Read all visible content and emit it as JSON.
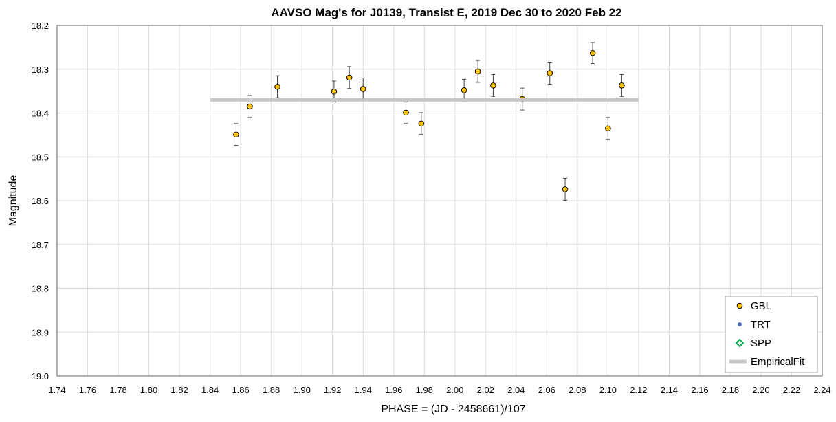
{
  "chart_data": {
    "type": "scatter",
    "title": "AAVSO Mag's for J0139, Transist E, 2019 Dec 30 to 2020 Feb 22",
    "xlabel": "PHASE = (JD - 2458661)/107",
    "ylabel": "Magnitude",
    "xlim": [
      1.74,
      2.24
    ],
    "ylim": [
      18.2,
      19.0
    ],
    "y_reversed": true,
    "grid": true,
    "legend_position": "bottom-right",
    "x_ticks": [
      "1.74",
      "1.76",
      "1.78",
      "1.80",
      "1.82",
      "1.84",
      "1.86",
      "1.88",
      "1.90",
      "1.92",
      "1.94",
      "1.96",
      "1.98",
      "2.00",
      "2.02",
      "2.04",
      "2.06",
      "2.08",
      "2.10",
      "2.12",
      "2.14",
      "2.16",
      "2.18",
      "2.20",
      "2.22",
      "2.24"
    ],
    "y_ticks": [
      "18.2",
      "18.3",
      "18.4",
      "18.5",
      "18.6",
      "18.7",
      "18.8",
      "18.9",
      "19.0"
    ],
    "series": [
      {
        "name": "GBL",
        "marker": "circle",
        "color": "#FFC000",
        "points": [
          {
            "x": 1.857,
            "y": 18.449,
            "err": 0.025
          },
          {
            "x": 1.866,
            "y": 18.385,
            "err": 0.025
          },
          {
            "x": 1.884,
            "y": 18.34,
            "err": 0.025
          },
          {
            "x": 1.921,
            "y": 18.351,
            "err": 0.024
          },
          {
            "x": 1.931,
            "y": 18.319,
            "err": 0.025
          },
          {
            "x": 1.94,
            "y": 18.345,
            "err": 0.025
          },
          {
            "x": 1.968,
            "y": 18.399,
            "err": 0.025
          },
          {
            "x": 1.978,
            "y": 18.424,
            "err": 0.025
          },
          {
            "x": 2.006,
            "y": 18.348,
            "err": 0.025
          },
          {
            "x": 2.015,
            "y": 18.305,
            "err": 0.025
          },
          {
            "x": 2.025,
            "y": 18.337,
            "err": 0.025
          },
          {
            "x": 2.044,
            "y": 18.368,
            "err": 0.025
          },
          {
            "x": 2.062,
            "y": 18.309,
            "err": 0.025
          },
          {
            "x": 2.072,
            "y": 18.574,
            "err": 0.025
          },
          {
            "x": 2.09,
            "y": 18.263,
            "err": 0.024
          },
          {
            "x": 2.1,
            "y": 18.435,
            "err": 0.025
          },
          {
            "x": 2.109,
            "y": 18.337,
            "err": 0.025
          }
        ]
      },
      {
        "name": "TRT",
        "marker": "dot",
        "color": "#4472C4",
        "points": []
      },
      {
        "name": "SPP",
        "marker": "diamond",
        "color": "#00B050",
        "points": []
      },
      {
        "name": "EmpiricalFit",
        "marker": "line",
        "color": "#C8C8C8",
        "points": [
          {
            "x": 1.84,
            "y": 18.37
          },
          {
            "x": 2.12,
            "y": 18.37
          }
        ]
      }
    ]
  }
}
